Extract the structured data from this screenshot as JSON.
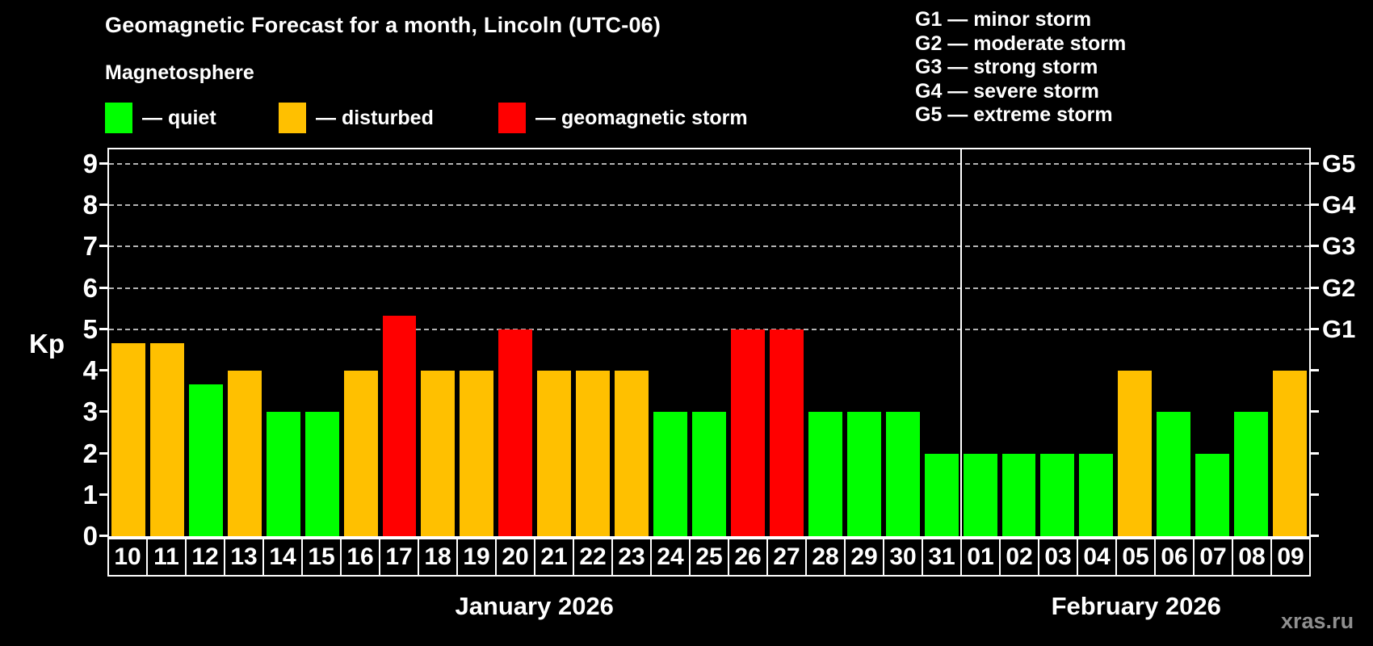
{
  "title": "Geomagnetic Forecast for a month, Lincoln (UTC-06)",
  "magnetosphere_legend": {
    "heading": "Magnetosphere",
    "items": [
      {
        "name": "quiet",
        "label": "— quiet",
        "color": "#00ff00"
      },
      {
        "name": "disturbed",
        "label": "— disturbed",
        "color": "#ffc000"
      },
      {
        "name": "storm",
        "label": "— geomagnetic storm",
        "color": "#ff0000"
      }
    ]
  },
  "storm_scale_legend": {
    "lines": [
      "G1 — minor storm",
      "G2 — moderate storm",
      "G3 — strong storm",
      "G4 — severe storm",
      "G5 — extreme storm"
    ]
  },
  "watermark": "xras.ru",
  "chart_data": {
    "type": "bar",
    "title": "Geomagnetic Forecast for a month, Lincoln (UTC-06)",
    "ylabel": "Kp",
    "ylim": [
      0,
      9.35
    ],
    "y_ticks": [
      0,
      1,
      2,
      3,
      4,
      5,
      6,
      7,
      8,
      9
    ],
    "gridlines_at": [
      5,
      6,
      7,
      8,
      9
    ],
    "grid": "horizontal dashed lines only at storm levels G1–G5",
    "right_axis_labels": [
      {
        "value": 5,
        "label": "G1"
      },
      {
        "value": 6,
        "label": "G2"
      },
      {
        "value": 7,
        "label": "G3"
      },
      {
        "value": 8,
        "label": "G4"
      },
      {
        "value": 9,
        "label": "G5"
      }
    ],
    "months": [
      {
        "label": "January 2026",
        "days": 22
      },
      {
        "label": "February 2026",
        "days": 9
      }
    ],
    "categories": [
      "10",
      "11",
      "12",
      "13",
      "14",
      "15",
      "16",
      "17",
      "18",
      "19",
      "20",
      "21",
      "22",
      "23",
      "24",
      "25",
      "26",
      "27",
      "28",
      "29",
      "30",
      "31",
      "01",
      "02",
      "03",
      "04",
      "05",
      "06",
      "07",
      "08",
      "09"
    ],
    "series": [
      {
        "name": "Kp forecast",
        "values": [
          4.67,
          4.67,
          3.67,
          4,
          3,
          3,
          4,
          5.33,
          4,
          4,
          5,
          4,
          4,
          4,
          3,
          3,
          5,
          5,
          3,
          3,
          3,
          2,
          2,
          2,
          2,
          2,
          4,
          3,
          2,
          3,
          4
        ],
        "statuses": [
          "disturbed",
          "disturbed",
          "quiet",
          "disturbed",
          "quiet",
          "quiet",
          "disturbed",
          "storm",
          "disturbed",
          "disturbed",
          "storm",
          "disturbed",
          "disturbed",
          "disturbed",
          "quiet",
          "quiet",
          "storm",
          "storm",
          "quiet",
          "quiet",
          "quiet",
          "quiet",
          "quiet",
          "quiet",
          "quiet",
          "quiet",
          "disturbed",
          "quiet",
          "quiet",
          "quiet",
          "disturbed"
        ]
      }
    ],
    "status_colors": {
      "quiet": "#00ff00",
      "disturbed": "#ffc000",
      "storm": "#ff0000"
    }
  }
}
